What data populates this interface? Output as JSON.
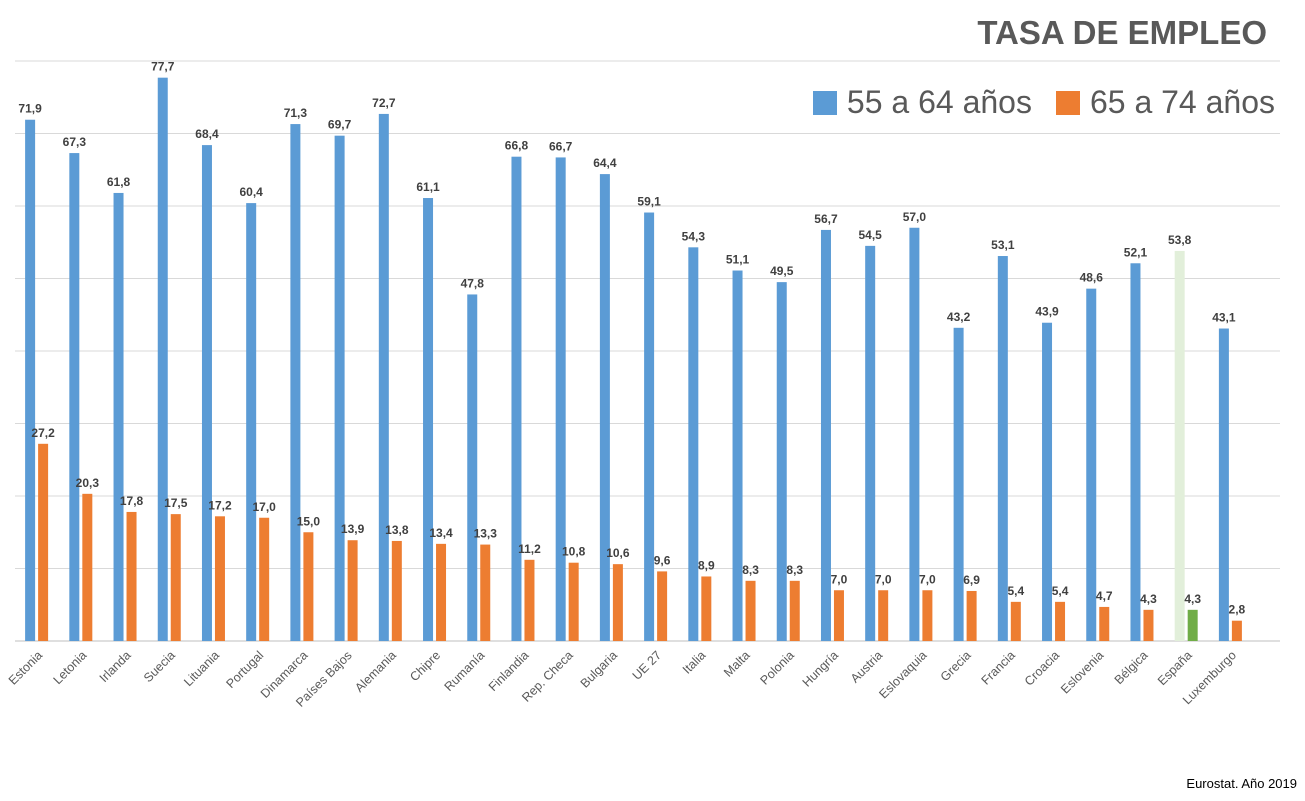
{
  "chart_data": {
    "type": "bar",
    "title": "TASA DE EMPLEO",
    "source": "Eurostat. Año 2019",
    "ylim": [
      0,
      80
    ],
    "grid": true,
    "gridline_step": 10,
    "legend_placement": "top-right",
    "categories": [
      "Estonia",
      "Letonia",
      "Irlanda",
      "Suecia",
      "Lituania",
      "Portugal",
      "Dinamarca",
      "Países Bajos",
      "Alemania",
      "Chipre",
      "Rumanía",
      "Finlandia",
      "Rep. Checa",
      "Bulgaria",
      "UE 27",
      "Italia",
      "Malta",
      "Polonia",
      "Hungría",
      "Austria",
      "Eslovaquia",
      "Grecia",
      "Francia",
      "Croacia",
      "Eslovenia",
      "Bélgica",
      "España",
      "Luxemburgo"
    ],
    "series": [
      {
        "name": "55 a 64 años",
        "color": "#5b9bd5",
        "values": [
          71.9,
          67.3,
          61.8,
          77.7,
          68.4,
          60.4,
          71.3,
          69.7,
          72.7,
          61.1,
          47.8,
          66.8,
          66.7,
          64.4,
          59.1,
          54.3,
          51.1,
          49.5,
          56.7,
          54.5,
          57.0,
          43.2,
          53.1,
          43.9,
          48.6,
          52.1,
          53.8,
          43.1
        ]
      },
      {
        "name": "65 a 74 años",
        "color": "#ed7d31",
        "values": [
          27.2,
          20.3,
          17.8,
          17.5,
          17.2,
          17.0,
          15.0,
          13.9,
          13.8,
          13.4,
          13.3,
          11.2,
          10.8,
          10.6,
          9.6,
          8.9,
          8.3,
          8.3,
          7.0,
          7.0,
          7.0,
          6.9,
          5.4,
          5.4,
          4.7,
          4.3,
          4.3,
          2.8
        ]
      }
    ],
    "highlight": {
      "category": "España",
      "colors": [
        "#e2efda",
        "#70ad47"
      ]
    }
  }
}
